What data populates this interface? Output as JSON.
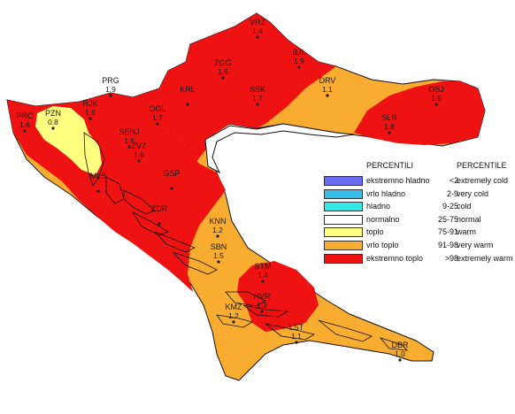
{
  "legend": {
    "header_hr": "PERCENTILI",
    "header_en": "PERCENTILE",
    "items": [
      {
        "hr": "ekstremno hladno",
        "range": "<2",
        "en": "extremely cold",
        "color": "#6b6bf0"
      },
      {
        "hr": "vrlo hladno",
        "range": "2-9",
        "en": "very cold",
        "color": "#38bce8"
      },
      {
        "hr": "hladno",
        "range": "9-25",
        "en": "cold",
        "color": "#33e8e8"
      },
      {
        "hr": "normalno",
        "range": "25-75",
        "en": "normal",
        "color": "#ffffff"
      },
      {
        "hr": "toplo",
        "range": "75-91",
        "en": "warm",
        "color": "#ffff80"
      },
      {
        "hr": "vrlo toplo",
        "range": "91-98",
        "en": "very warm",
        "color": "#f8ac30"
      },
      {
        "hr": "ekstremno toplo",
        "range": ">98",
        "en": "extremely warm",
        "color": "#ee1212"
      }
    ]
  },
  "stations": [
    {
      "code": "VRZ",
      "value": "1.4"
    },
    {
      "code": "BJL",
      "value": "1.9"
    },
    {
      "code": "ZGG",
      "value": "1.5"
    },
    {
      "code": "KRL",
      "value": ""
    },
    {
      "code": "SSK",
      "value": "1.7"
    },
    {
      "code": "DRV",
      "value": "1.1"
    },
    {
      "code": "OSJ",
      "value": "1.5"
    },
    {
      "code": "SLB",
      "value": "1.8"
    },
    {
      "code": "PRG",
      "value": "1.9"
    },
    {
      "code": "RJK",
      "value": "1.6"
    },
    {
      "code": "OGL",
      "value": "1.7"
    },
    {
      "code": "PZN",
      "value": "0.8"
    },
    {
      "code": "PRC",
      "value": "1.6"
    },
    {
      "code": "SENJ",
      "value": "1.6"
    },
    {
      "code": "ZVZ",
      "value": "1.6"
    },
    {
      "code": "MLS",
      "value": ""
    },
    {
      "code": "GSP",
      "value": ""
    },
    {
      "code": "ZDR",
      "value": ""
    },
    {
      "code": "KNN",
      "value": "1.2"
    },
    {
      "code": "SBN",
      "value": "1.5"
    },
    {
      "code": "STM",
      "value": "1.4"
    },
    {
      "code": "HVR",
      "value": "1.3"
    },
    {
      "code": "KMZ",
      "value": "1.2"
    },
    {
      "code": "LST",
      "value": "1.1"
    },
    {
      "code": "DBR",
      "value": "1.0"
    }
  ],
  "colors": {
    "extreme_warm": "#ee1212",
    "very_warm": "#f8ac30",
    "warm": "#ffff80",
    "outline": "#111111"
  }
}
